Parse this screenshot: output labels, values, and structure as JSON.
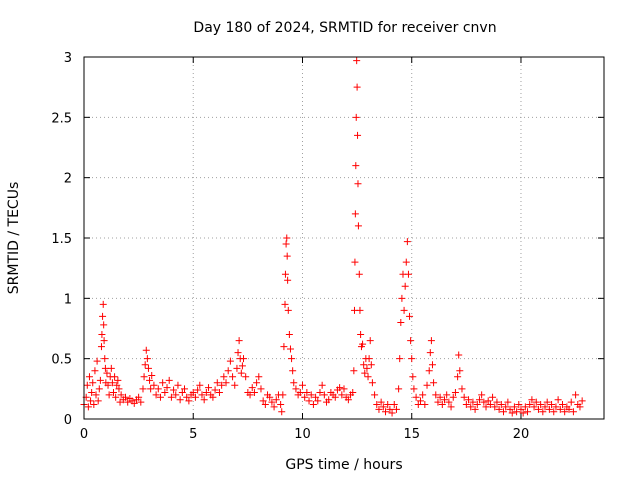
{
  "chart_data": {
    "type": "scatter",
    "title": "Day 180 of 2024, SRMTID for receiver cnvn",
    "xlabel": "GPS time / hours",
    "ylabel": "SRMTID / TECUs",
    "xlim": [
      0,
      23.8
    ],
    "ylim": [
      0,
      3
    ],
    "xticks": [
      0,
      5,
      10,
      15,
      20
    ],
    "xtick_labels": [
      "0",
      "5",
      "10",
      "15",
      "20"
    ],
    "yticks": [
      0,
      0.5,
      1,
      1.5,
      2,
      2.5,
      3
    ],
    "ytick_labels": [
      "0",
      "0.5",
      "1",
      "1.5",
      "2",
      "2.5",
      "3"
    ],
    "grid": true,
    "marker": "+",
    "color": "#ff0000",
    "series": [
      {
        "name": "SRMTID",
        "points": [
          [
            0.0,
            0.12
          ],
          [
            0.1,
            0.18
          ],
          [
            0.15,
            0.28
          ],
          [
            0.2,
            0.1
          ],
          [
            0.25,
            0.35
          ],
          [
            0.3,
            0.15
          ],
          [
            0.35,
            0.22
          ],
          [
            0.4,
            0.3
          ],
          [
            0.45,
            0.12
          ],
          [
            0.5,
            0.4
          ],
          [
            0.55,
            0.2
          ],
          [
            0.6,
            0.48
          ],
          [
            0.65,
            0.15
          ],
          [
            0.7,
            0.25
          ],
          [
            0.75,
            0.32
          ],
          [
            0.8,
            0.6
          ],
          [
            0.82,
            0.7
          ],
          [
            0.85,
            0.85
          ],
          [
            0.88,
            0.95
          ],
          [
            0.9,
            0.78
          ],
          [
            0.92,
            0.65
          ],
          [
            0.95,
            0.5
          ],
          [
            0.98,
            0.42
          ],
          [
            1.0,
            0.3
          ],
          [
            1.05,
            0.38
          ],
          [
            1.1,
            0.28
          ],
          [
            1.15,
            0.2
          ],
          [
            1.2,
            0.35
          ],
          [
            1.25,
            0.42
          ],
          [
            1.3,
            0.3
          ],
          [
            1.35,
            0.22
          ],
          [
            1.4,
            0.35
          ],
          [
            1.45,
            0.18
          ],
          [
            1.5,
            0.28
          ],
          [
            1.55,
            0.32
          ],
          [
            1.6,
            0.25
          ],
          [
            1.65,
            0.14
          ],
          [
            1.7,
            0.2
          ],
          [
            1.8,
            0.16
          ],
          [
            1.9,
            0.18
          ],
          [
            2.0,
            0.14
          ],
          [
            2.1,
            0.17
          ],
          [
            2.2,
            0.15
          ],
          [
            2.3,
            0.13
          ],
          [
            2.4,
            0.16
          ],
          [
            2.5,
            0.18
          ],
          [
            2.6,
            0.14
          ],
          [
            2.7,
            0.25
          ],
          [
            2.75,
            0.35
          ],
          [
            2.8,
            0.45
          ],
          [
            2.85,
            0.57
          ],
          [
            2.9,
            0.5
          ],
          [
            2.95,
            0.42
          ],
          [
            3.0,
            0.32
          ],
          [
            3.05,
            0.25
          ],
          [
            3.1,
            0.36
          ],
          [
            3.2,
            0.28
          ],
          [
            3.3,
            0.2
          ],
          [
            3.4,
            0.25
          ],
          [
            3.5,
            0.18
          ],
          [
            3.6,
            0.3
          ],
          [
            3.7,
            0.22
          ],
          [
            3.8,
            0.26
          ],
          [
            3.9,
            0.32
          ],
          [
            4.0,
            0.18
          ],
          [
            4.1,
            0.24
          ],
          [
            4.2,
            0.2
          ],
          [
            4.3,
            0.28
          ],
          [
            4.4,
            0.16
          ],
          [
            4.5,
            0.22
          ],
          [
            4.6,
            0.25
          ],
          [
            4.7,
            0.18
          ],
          [
            4.8,
            0.15
          ],
          [
            4.9,
            0.2
          ],
          [
            5.0,
            0.22
          ],
          [
            5.1,
            0.18
          ],
          [
            5.2,
            0.24
          ],
          [
            5.3,
            0.28
          ],
          [
            5.4,
            0.2
          ],
          [
            5.5,
            0.16
          ],
          [
            5.6,
            0.22
          ],
          [
            5.7,
            0.26
          ],
          [
            5.8,
            0.2
          ],
          [
            5.9,
            0.18
          ],
          [
            6.0,
            0.24
          ],
          [
            6.1,
            0.3
          ],
          [
            6.2,
            0.22
          ],
          [
            6.3,
            0.28
          ],
          [
            6.4,
            0.35
          ],
          [
            6.5,
            0.3
          ],
          [
            6.6,
            0.4
          ],
          [
            6.7,
            0.48
          ],
          [
            6.8,
            0.35
          ],
          [
            6.9,
            0.28
          ],
          [
            7.0,
            0.42
          ],
          [
            7.05,
            0.55
          ],
          [
            7.1,
            0.65
          ],
          [
            7.15,
            0.5
          ],
          [
            7.2,
            0.38
          ],
          [
            7.25,
            0.44
          ],
          [
            7.3,
            0.5
          ],
          [
            7.4,
            0.35
          ],
          [
            7.5,
            0.22
          ],
          [
            7.6,
            0.2
          ],
          [
            7.7,
            0.26
          ],
          [
            7.8,
            0.22
          ],
          [
            7.9,
            0.3
          ],
          [
            8.0,
            0.35
          ],
          [
            8.1,
            0.25
          ],
          [
            8.2,
            0.15
          ],
          [
            8.3,
            0.12
          ],
          [
            8.4,
            0.2
          ],
          [
            8.5,
            0.18
          ],
          [
            8.6,
            0.14
          ],
          [
            8.7,
            0.1
          ],
          [
            8.8,
            0.16
          ],
          [
            8.9,
            0.2
          ],
          [
            9.0,
            0.12
          ],
          [
            9.05,
            0.06
          ],
          [
            9.1,
            0.2
          ],
          [
            9.15,
            0.6
          ],
          [
            9.2,
            0.95
          ],
          [
            9.22,
            1.2
          ],
          [
            9.25,
            1.45
          ],
          [
            9.28,
            1.5
          ],
          [
            9.3,
            1.35
          ],
          [
            9.32,
            1.15
          ],
          [
            9.35,
            0.9
          ],
          [
            9.4,
            0.7
          ],
          [
            9.45,
            0.58
          ],
          [
            9.5,
            0.5
          ],
          [
            9.55,
            0.4
          ],
          [
            9.6,
            0.3
          ],
          [
            9.7,
            0.25
          ],
          [
            9.8,
            0.2
          ],
          [
            9.9,
            0.22
          ],
          [
            10.0,
            0.28
          ],
          [
            10.1,
            0.18
          ],
          [
            10.2,
            0.22
          ],
          [
            10.3,
            0.15
          ],
          [
            10.4,
            0.2
          ],
          [
            10.5,
            0.12
          ],
          [
            10.6,
            0.18
          ],
          [
            10.7,
            0.15
          ],
          [
            10.8,
            0.22
          ],
          [
            10.9,
            0.28
          ],
          [
            11.0,
            0.2
          ],
          [
            11.1,
            0.14
          ],
          [
            11.2,
            0.16
          ],
          [
            11.3,
            0.22
          ],
          [
            11.4,
            0.2
          ],
          [
            11.5,
            0.18
          ],
          [
            11.6,
            0.24
          ],
          [
            11.7,
            0.26
          ],
          [
            11.8,
            0.2
          ],
          [
            11.9,
            0.25
          ],
          [
            12.0,
            0.18
          ],
          [
            12.1,
            0.16
          ],
          [
            12.2,
            0.2
          ],
          [
            12.3,
            0.22
          ],
          [
            12.35,
            0.4
          ],
          [
            12.38,
            0.9
          ],
          [
            12.4,
            1.3
          ],
          [
            12.42,
            1.7
          ],
          [
            12.44,
            2.1
          ],
          [
            12.46,
            2.5
          ],
          [
            12.48,
            2.97
          ],
          [
            12.5,
            2.75
          ],
          [
            12.52,
            2.35
          ],
          [
            12.54,
            1.95
          ],
          [
            12.56,
            1.6
          ],
          [
            12.6,
            1.2
          ],
          [
            12.63,
            0.9
          ],
          [
            12.66,
            0.7
          ],
          [
            12.7,
            0.6
          ],
          [
            12.75,
            0.62
          ],
          [
            12.8,
            0.45
          ],
          [
            12.85,
            0.38
          ],
          [
            12.9,
            0.5
          ],
          [
            12.95,
            0.42
          ],
          [
            13.0,
            0.35
          ],
          [
            13.05,
            0.5
          ],
          [
            13.1,
            0.65
          ],
          [
            13.15,
            0.45
          ],
          [
            13.2,
            0.3
          ],
          [
            13.3,
            0.2
          ],
          [
            13.4,
            0.12
          ],
          [
            13.5,
            0.08
          ],
          [
            13.6,
            0.14
          ],
          [
            13.7,
            0.1
          ],
          [
            13.8,
            0.06
          ],
          [
            13.9,
            0.12
          ],
          [
            14.0,
            0.08
          ],
          [
            14.1,
            0.05
          ],
          [
            14.2,
            0.12
          ],
          [
            14.3,
            0.08
          ],
          [
            14.4,
            0.25
          ],
          [
            14.45,
            0.5
          ],
          [
            14.5,
            0.8
          ],
          [
            14.55,
            1.0
          ],
          [
            14.6,
            1.2
          ],
          [
            14.65,
            0.9
          ],
          [
            14.7,
            1.1
          ],
          [
            14.75,
            1.3
          ],
          [
            14.8,
            1.47
          ],
          [
            14.85,
            1.2
          ],
          [
            14.9,
            0.85
          ],
          [
            14.95,
            0.65
          ],
          [
            15.0,
            0.5
          ],
          [
            15.05,
            0.35
          ],
          [
            15.1,
            0.25
          ],
          [
            15.2,
            0.18
          ],
          [
            15.3,
            0.12
          ],
          [
            15.4,
            0.15
          ],
          [
            15.5,
            0.2
          ],
          [
            15.6,
            0.12
          ],
          [
            15.7,
            0.28
          ],
          [
            15.8,
            0.4
          ],
          [
            15.85,
            0.55
          ],
          [
            15.9,
            0.65
          ],
          [
            15.95,
            0.45
          ],
          [
            16.0,
            0.3
          ],
          [
            16.1,
            0.2
          ],
          [
            16.2,
            0.14
          ],
          [
            16.3,
            0.18
          ],
          [
            16.4,
            0.12
          ],
          [
            16.5,
            0.16
          ],
          [
            16.6,
            0.2
          ],
          [
            16.7,
            0.14
          ],
          [
            16.8,
            0.1
          ],
          [
            16.9,
            0.18
          ],
          [
            17.0,
            0.22
          ],
          [
            17.1,
            0.35
          ],
          [
            17.15,
            0.53
          ],
          [
            17.2,
            0.4
          ],
          [
            17.3,
            0.25
          ],
          [
            17.4,
            0.18
          ],
          [
            17.5,
            0.12
          ],
          [
            17.6,
            0.16
          ],
          [
            17.7,
            0.1
          ],
          [
            17.8,
            0.14
          ],
          [
            17.9,
            0.08
          ],
          [
            18.0,
            0.12
          ],
          [
            18.1,
            0.16
          ],
          [
            18.2,
            0.2
          ],
          [
            18.3,
            0.14
          ],
          [
            18.4,
            0.1
          ],
          [
            18.5,
            0.15
          ],
          [
            18.6,
            0.12
          ],
          [
            18.7,
            0.18
          ],
          [
            18.8,
            0.1
          ],
          [
            18.9,
            0.14
          ],
          [
            19.0,
            0.08
          ],
          [
            19.1,
            0.12
          ],
          [
            19.2,
            0.06
          ],
          [
            19.3,
            0.1
          ],
          [
            19.4,
            0.14
          ],
          [
            19.5,
            0.08
          ],
          [
            19.6,
            0.05
          ],
          [
            19.7,
            0.1
          ],
          [
            19.8,
            0.06
          ],
          [
            19.9,
            0.12
          ],
          [
            20.0,
            0.08
          ],
          [
            20.1,
            0.05
          ],
          [
            20.2,
            0.1
          ],
          [
            20.3,
            0.06
          ],
          [
            20.4,
            0.12
          ],
          [
            20.5,
            0.16
          ],
          [
            20.6,
            0.1
          ],
          [
            20.7,
            0.14
          ],
          [
            20.8,
            0.08
          ],
          [
            20.9,
            0.12
          ],
          [
            21.0,
            0.06
          ],
          [
            21.1,
            0.1
          ],
          [
            21.2,
            0.14
          ],
          [
            21.3,
            0.08
          ],
          [
            21.4,
            0.12
          ],
          [
            21.5,
            0.06
          ],
          [
            21.6,
            0.1
          ],
          [
            21.7,
            0.16
          ],
          [
            21.8,
            0.08
          ],
          [
            21.9,
            0.12
          ],
          [
            22.0,
            0.06
          ],
          [
            22.1,
            0.1
          ],
          [
            22.2,
            0.08
          ],
          [
            22.3,
            0.14
          ],
          [
            22.4,
            0.06
          ],
          [
            22.5,
            0.2
          ],
          [
            22.6,
            0.12
          ],
          [
            22.7,
            0.1
          ],
          [
            22.8,
            0.15
          ]
        ]
      }
    ]
  }
}
